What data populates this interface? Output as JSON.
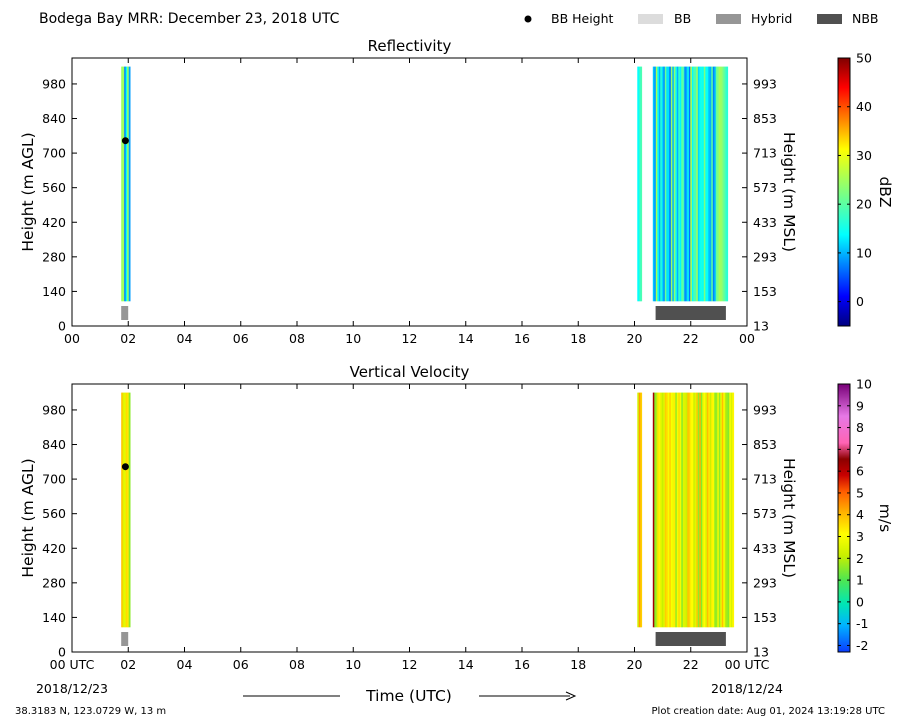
{
  "header": {
    "title": "Bodega Bay MRR:  December 23, 2018 UTC",
    "legend": [
      {
        "label": "BB Height",
        "kind": "dot",
        "color": "#000000"
      },
      {
        "label": "BB",
        "kind": "swatch",
        "color": "#dcdcdc"
      },
      {
        "label": "Hybrid",
        "kind": "swatch",
        "color": "#969696"
      },
      {
        "label": "NBB",
        "kind": "swatch",
        "color": "#505050"
      }
    ]
  },
  "footer": {
    "location": "38.3183 N, 123.0729 W, 13 m",
    "creation": "Plot creation date: Aug 01, 2024 13:19:28 UTC",
    "xlabel": "Time (UTC)",
    "start_date": "2018/12/23",
    "end_date": "2018/12/24"
  },
  "chart_data": [
    {
      "type": "heatmap",
      "title": "Reflectivity",
      "ylabel": "Height (m AGL)",
      "ylabel_right": "Height (m MSL)",
      "colorbar_label": "dBZ",
      "colorbar_range": [
        -5,
        50
      ],
      "colorbar_ticks": [
        "0",
        "10",
        "20",
        "30",
        "40",
        "50"
      ],
      "colorbar_tick_values": [
        0,
        10,
        20,
        30,
        40,
        50
      ],
      "colormap": "jet",
      "x_ticks": [
        "00",
        "02",
        "04",
        "06",
        "08",
        "10",
        "12",
        "14",
        "16",
        "18",
        "20",
        "22",
        "00"
      ],
      "x_tick_hours": [
        0,
        2,
        4,
        6,
        8,
        10,
        12,
        14,
        16,
        18,
        20,
        22,
        24
      ],
      "xlim_hours": [
        0,
        24
      ],
      "ylim_m_agl": [
        0,
        1085
      ],
      "y_ticks_agl": [
        "0",
        "140",
        "280",
        "420",
        "560",
        "700",
        "840",
        "980"
      ],
      "y_ticks_agl_values": [
        0,
        140,
        280,
        420,
        560,
        700,
        840,
        980
      ],
      "y_ticks_msl": [
        "13",
        "153",
        "293",
        "433",
        "573",
        "713",
        "853",
        "993"
      ],
      "data_top_m": 1050,
      "data_bottom_m": 100,
      "echo_periods_utc_hours": [
        [
          1.75,
          2.05
        ],
        [
          20.1,
          20.25
        ],
        [
          20.65,
          23.3
        ]
      ],
      "bright_band_points": [
        {
          "hour": 1.9,
          "height_m": 750
        }
      ],
      "bright_band_types": [
        {
          "type": "Hybrid",
          "start_hour": 1.75,
          "end_hour": 2.0
        },
        {
          "type": "NBB",
          "start_hour": 20.75,
          "end_hour": 23.25
        }
      ]
    },
    {
      "type": "heatmap",
      "title": "Vertical Velocity",
      "ylabel": "Height (m AGL)",
      "ylabel_right": "Height (m MSL)",
      "colorbar_label": "m/s",
      "colorbar_range": [
        -2.3,
        10
      ],
      "colorbar_ticks": [
        "-2",
        "-1",
        "0",
        "1",
        "2",
        "3",
        "4",
        "5",
        "6",
        "7",
        "8",
        "9",
        "10"
      ],
      "colorbar_tick_values": [
        -2,
        -1,
        0,
        1,
        2,
        3,
        4,
        5,
        6,
        7,
        8,
        9,
        10
      ],
      "colormap": "velocity",
      "x_ticks": [
        "00 UTC",
        "02",
        "04",
        "06",
        "08",
        "10",
        "12",
        "14",
        "16",
        "18",
        "20",
        "22",
        "00 UTC"
      ],
      "x_tick_hours": [
        0,
        2,
        4,
        6,
        8,
        10,
        12,
        14,
        16,
        18,
        20,
        22,
        24
      ],
      "xlim_hours": [
        0,
        24
      ],
      "ylim_m_agl": [
        0,
        1085
      ],
      "y_ticks_agl": [
        "0",
        "140",
        "280",
        "420",
        "560",
        "700",
        "840",
        "980"
      ],
      "y_ticks_agl_values": [
        0,
        140,
        280,
        420,
        560,
        700,
        840,
        980
      ],
      "y_ticks_msl": [
        "13",
        "153",
        "293",
        "433",
        "573",
        "713",
        "853",
        "993"
      ],
      "data_top_m": 1050,
      "data_bottom_m": 100,
      "echo_periods_utc_hours": [
        [
          1.75,
          2.05
        ],
        [
          20.1,
          20.25
        ],
        [
          20.65,
          23.5
        ]
      ],
      "bright_band_points": [
        {
          "hour": 1.9,
          "height_m": 750
        }
      ],
      "bright_band_types": [
        {
          "type": "Hybrid",
          "start_hour": 1.75,
          "end_hour": 2.0
        },
        {
          "type": "NBB",
          "start_hour": 20.75,
          "end_hour": 23.25
        }
      ]
    }
  ]
}
